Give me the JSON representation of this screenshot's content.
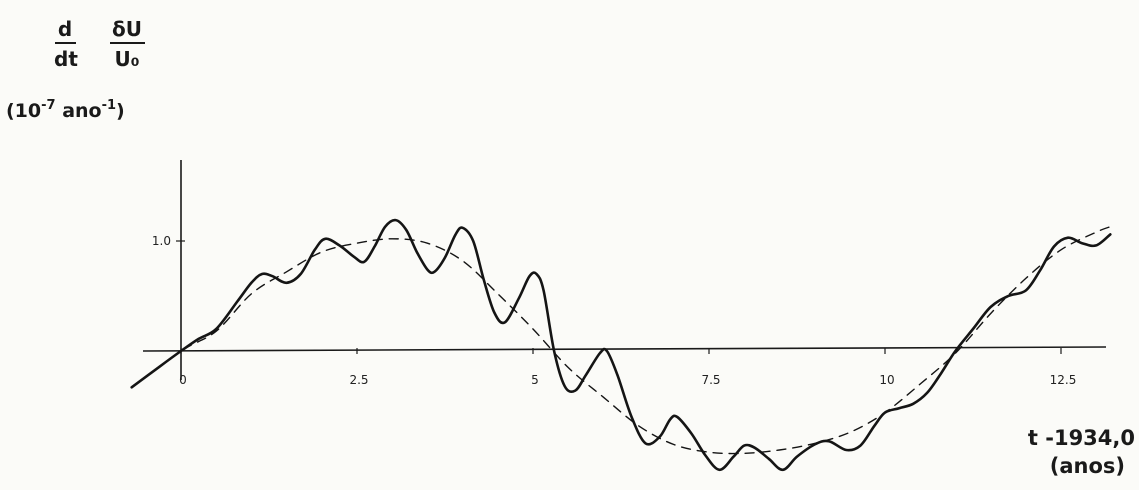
{
  "chart_data": {
    "type": "line",
    "ylabel": {
      "d_num": "d",
      "d_den": "dt",
      "frac_num": "δU",
      "frac_den": "U₀",
      "units_prefix": "(10",
      "units_exp1": "-7",
      "units_mid": " ano",
      "units_exp2": "-1",
      "units_suffix": ")"
    },
    "xlabel": {
      "line1": "t -1934,0",
      "line2": "(anos)"
    },
    "xlim": [
      -0.7,
      13.2
    ],
    "ylim": [
      -1.1,
      1.25
    ],
    "x_ticks": [
      {
        "value": 0,
        "label": "0"
      },
      {
        "value": 2.5,
        "label": "2.5"
      },
      {
        "value": 5,
        "label": "5"
      },
      {
        "value": 7.5,
        "label": "7.5"
      },
      {
        "value": 10,
        "label": "10"
      },
      {
        "value": 12.5,
        "label": "12.5"
      }
    ],
    "y_ticks": [
      {
        "value": 1.0,
        "label": "1.0"
      }
    ],
    "series": [
      {
        "style": "solid",
        "points": [
          [
            -0.7,
            -0.33
          ],
          [
            -0.3,
            -0.14
          ],
          [
            0,
            0
          ],
          [
            0.25,
            0.11
          ],
          [
            0.5,
            0.2
          ],
          [
            0.8,
            0.45
          ],
          [
            1.0,
            0.62
          ],
          [
            1.15,
            0.7
          ],
          [
            1.3,
            0.68
          ],
          [
            1.5,
            0.62
          ],
          [
            1.7,
            0.7
          ],
          [
            1.9,
            0.92
          ],
          [
            2.05,
            1.02
          ],
          [
            2.25,
            0.96
          ],
          [
            2.45,
            0.86
          ],
          [
            2.6,
            0.81
          ],
          [
            2.75,
            0.95
          ],
          [
            2.9,
            1.13
          ],
          [
            3.05,
            1.19
          ],
          [
            3.2,
            1.1
          ],
          [
            3.35,
            0.9
          ],
          [
            3.5,
            0.74
          ],
          [
            3.6,
            0.72
          ],
          [
            3.75,
            0.85
          ],
          [
            3.9,
            1.06
          ],
          [
            4.0,
            1.12
          ],
          [
            4.15,
            1.0
          ],
          [
            4.3,
            0.65
          ],
          [
            4.45,
            0.35
          ],
          [
            4.6,
            0.26
          ],
          [
            4.8,
            0.48
          ],
          [
            4.95,
            0.68
          ],
          [
            5.05,
            0.7
          ],
          [
            5.15,
            0.55
          ],
          [
            5.3,
            0.0
          ],
          [
            5.45,
            -0.32
          ],
          [
            5.6,
            -0.36
          ],
          [
            5.75,
            -0.22
          ],
          [
            5.95,
            -0.02
          ],
          [
            6.05,
            0.0
          ],
          [
            6.2,
            -0.22
          ],
          [
            6.4,
            -0.6
          ],
          [
            6.6,
            -0.84
          ],
          [
            6.8,
            -0.78
          ],
          [
            6.95,
            -0.62
          ],
          [
            7.05,
            -0.6
          ],
          [
            7.25,
            -0.75
          ],
          [
            7.45,
            -0.95
          ],
          [
            7.65,
            -1.08
          ],
          [
            7.85,
            -0.96
          ],
          [
            8.0,
            -0.86
          ],
          [
            8.15,
            -0.88
          ],
          [
            8.35,
            -0.98
          ],
          [
            8.55,
            -1.08
          ],
          [
            8.75,
            -0.96
          ],
          [
            9.0,
            -0.85
          ],
          [
            9.2,
            -0.82
          ],
          [
            9.45,
            -0.9
          ],
          [
            9.65,
            -0.86
          ],
          [
            9.85,
            -0.68
          ],
          [
            10.0,
            -0.56
          ],
          [
            10.2,
            -0.52
          ],
          [
            10.4,
            -0.48
          ],
          [
            10.6,
            -0.38
          ],
          [
            10.8,
            -0.2
          ],
          [
            11.0,
            0.0
          ],
          [
            11.25,
            0.2
          ],
          [
            11.5,
            0.4
          ],
          [
            11.75,
            0.5
          ],
          [
            12.0,
            0.55
          ],
          [
            12.2,
            0.73
          ],
          [
            12.4,
            0.95
          ],
          [
            12.6,
            1.03
          ],
          [
            12.8,
            0.98
          ],
          [
            13.0,
            0.96
          ],
          [
            13.2,
            1.06
          ]
        ]
      },
      {
        "style": "dashed",
        "points": [
          [
            -0.7,
            -0.33
          ],
          [
            0,
            0
          ],
          [
            0.5,
            0.18
          ],
          [
            1.0,
            0.52
          ],
          [
            1.5,
            0.72
          ],
          [
            2.0,
            0.9
          ],
          [
            2.5,
            0.98
          ],
          [
            3.0,
            1.02
          ],
          [
            3.5,
            0.98
          ],
          [
            4.0,
            0.82
          ],
          [
            4.5,
            0.52
          ],
          [
            5.0,
            0.2
          ],
          [
            5.5,
            -0.15
          ],
          [
            6.0,
            -0.42
          ],
          [
            6.5,
            -0.68
          ],
          [
            7.0,
            -0.85
          ],
          [
            7.5,
            -0.92
          ],
          [
            8.0,
            -0.93
          ],
          [
            8.5,
            -0.9
          ],
          [
            9.0,
            -0.84
          ],
          [
            9.5,
            -0.74
          ],
          [
            10.0,
            -0.56
          ],
          [
            10.5,
            -0.3
          ],
          [
            11.0,
            -0.02
          ],
          [
            11.5,
            0.34
          ],
          [
            12.0,
            0.66
          ],
          [
            12.5,
            0.92
          ],
          [
            13.0,
            1.08
          ],
          [
            13.2,
            1.13
          ]
        ]
      }
    ]
  }
}
